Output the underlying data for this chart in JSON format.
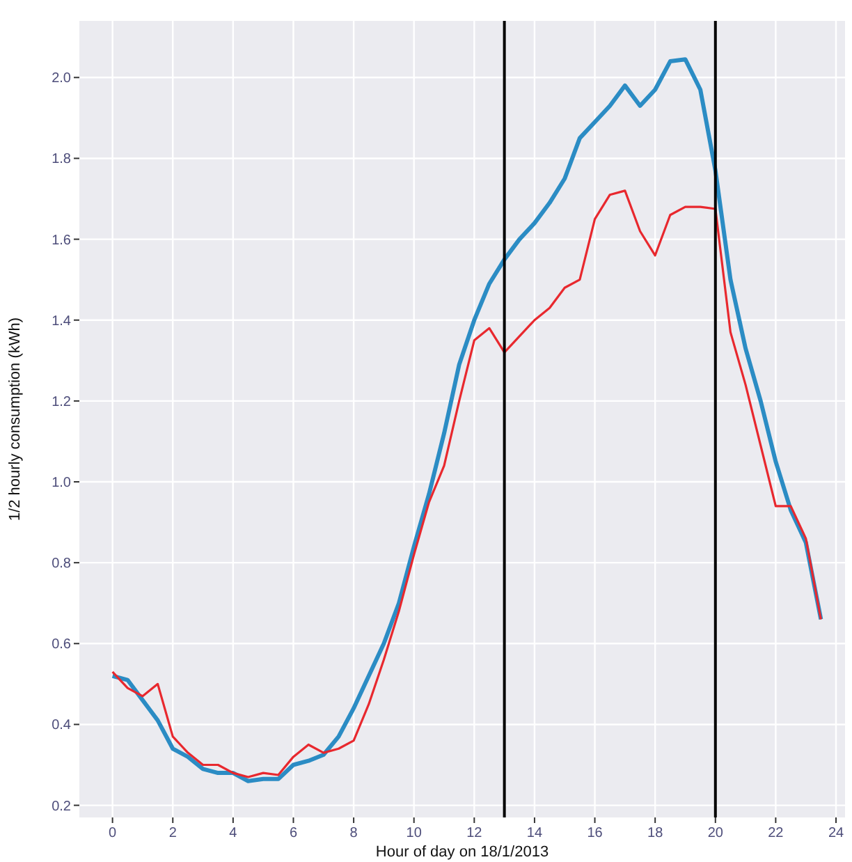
{
  "chart_data": {
    "type": "line",
    "xlabel": "Hour of day on 18/1/2013",
    "ylabel": "1/2 hourly consumption (kWh)",
    "x": [
      0,
      0.5,
      1,
      1.5,
      2,
      2.5,
      3,
      3.5,
      4,
      4.5,
      5,
      5.5,
      6,
      6.5,
      7,
      7.5,
      8,
      8.5,
      9,
      9.5,
      10,
      10.5,
      11,
      11.5,
      12,
      12.5,
      13,
      13.5,
      14,
      14.5,
      15,
      15.5,
      16,
      16.5,
      17,
      17.5,
      18,
      18.5,
      19,
      19.5,
      20,
      20.5,
      21,
      21.5,
      22,
      22.5,
      23,
      23.5
    ],
    "series": [
      {
        "color": "#2b8cc4",
        "values": [
          0.52,
          0.51,
          0.46,
          0.41,
          0.34,
          0.32,
          0.29,
          0.28,
          0.28,
          0.26,
          0.265,
          0.265,
          0.3,
          0.31,
          0.325,
          0.37,
          0.44,
          0.52,
          0.6,
          0.7,
          0.84,
          0.97,
          1.12,
          1.29,
          1.4,
          1.49,
          1.55,
          1.6,
          1.64,
          1.69,
          1.75,
          1.85,
          1.89,
          1.93,
          1.98,
          1.93,
          1.97,
          2.04,
          2.045,
          1.97,
          1.77,
          1.5,
          1.33,
          1.2,
          1.05,
          0.93,
          0.85,
          0.66
        ]
      },
      {
        "color": "#e8282e",
        "values": [
          0.53,
          0.49,
          0.47,
          0.5,
          0.37,
          0.33,
          0.3,
          0.3,
          0.28,
          0.27,
          0.28,
          0.275,
          0.32,
          0.35,
          0.33,
          0.34,
          0.36,
          0.45,
          0.56,
          0.68,
          0.82,
          0.95,
          1.04,
          1.2,
          1.35,
          1.38,
          1.32,
          1.36,
          1.4,
          1.43,
          1.48,
          1.5,
          1.65,
          1.71,
          1.72,
          1.62,
          1.56,
          1.66,
          1.68,
          1.68,
          1.675,
          1.37,
          1.24,
          1.09,
          0.94,
          0.94,
          0.86,
          0.66
        ]
      }
    ],
    "xlim": [
      -1.1,
      24.3
    ],
    "xticks": [
      0,
      2,
      4,
      6,
      8,
      10,
      12,
      14,
      16,
      18,
      20,
      22,
      24
    ],
    "ylim": [
      0.17,
      2.14
    ],
    "yticks": [
      {
        "value": 0.2,
        "label": "0.2"
      },
      {
        "value": 0.4,
        "label": "0.4"
      },
      {
        "value": 0.6,
        "label": "0.6"
      },
      {
        "value": 0.8,
        "label": "0.8"
      },
      {
        "value": 1.0,
        "label": "1.0"
      },
      {
        "value": 1.2,
        "label": "1.2"
      },
      {
        "value": 1.4,
        "label": "1.4"
      },
      {
        "value": 1.6,
        "label": "1.6"
      },
      {
        "value": 1.8,
        "label": "1.8"
      },
      {
        "value": 2.0,
        "label": "2.0"
      }
    ],
    "grid": true,
    "marker": "none",
    "line_style": "solid",
    "ref_lines": [
      {
        "axis": "x",
        "value": 13,
        "color": "#000000"
      },
      {
        "axis": "x",
        "value": 20,
        "color": "#000000"
      }
    ]
  }
}
